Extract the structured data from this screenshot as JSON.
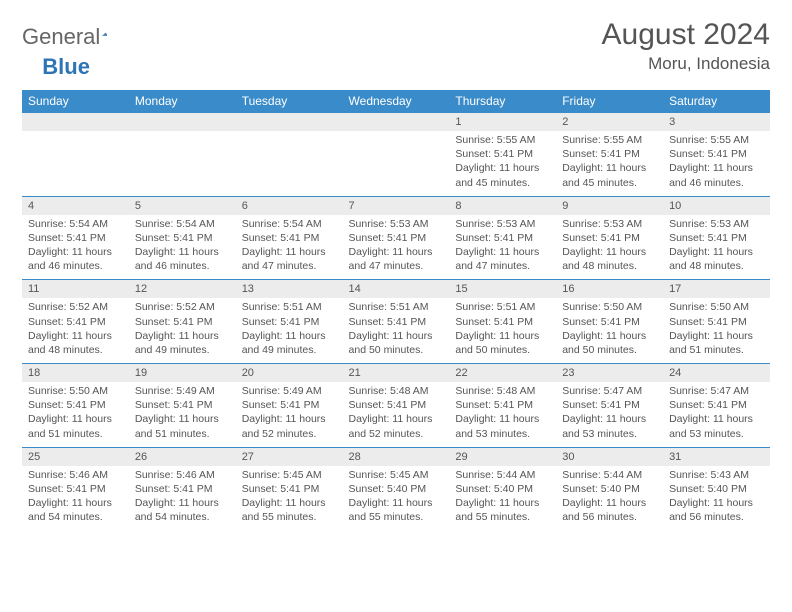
{
  "brand": {
    "part1": "General",
    "part2": "Blue"
  },
  "title": "August 2024",
  "location": "Moru, Indonesia",
  "colors": {
    "header_bg": "#3a8bc9",
    "header_text": "#ffffff",
    "daynum_bg": "#ececec",
    "rule": "#3a8bc9",
    "body_text": "#555555",
    "brand_gray": "#666666",
    "brand_blue": "#2e75b6"
  },
  "weekdays": [
    "Sunday",
    "Monday",
    "Tuesday",
    "Wednesday",
    "Thursday",
    "Friday",
    "Saturday"
  ],
  "weeks": [
    {
      "nums": [
        "",
        "",
        "",
        "",
        "1",
        "2",
        "3"
      ],
      "sun": [
        "",
        "",
        "",
        "",
        "Sunrise: 5:55 AM",
        "Sunrise: 5:55 AM",
        "Sunrise: 5:55 AM"
      ],
      "set": [
        "",
        "",
        "",
        "",
        "Sunset: 5:41 PM",
        "Sunset: 5:41 PM",
        "Sunset: 5:41 PM"
      ],
      "day1": [
        "",
        "",
        "",
        "",
        "Daylight: 11 hours",
        "Daylight: 11 hours",
        "Daylight: 11 hours"
      ],
      "day2": [
        "",
        "",
        "",
        "",
        "and 45 minutes.",
        "and 45 minutes.",
        "and 46 minutes."
      ]
    },
    {
      "nums": [
        "4",
        "5",
        "6",
        "7",
        "8",
        "9",
        "10"
      ],
      "sun": [
        "Sunrise: 5:54 AM",
        "Sunrise: 5:54 AM",
        "Sunrise: 5:54 AM",
        "Sunrise: 5:53 AM",
        "Sunrise: 5:53 AM",
        "Sunrise: 5:53 AM",
        "Sunrise: 5:53 AM"
      ],
      "set": [
        "Sunset: 5:41 PM",
        "Sunset: 5:41 PM",
        "Sunset: 5:41 PM",
        "Sunset: 5:41 PM",
        "Sunset: 5:41 PM",
        "Sunset: 5:41 PM",
        "Sunset: 5:41 PM"
      ],
      "day1": [
        "Daylight: 11 hours",
        "Daylight: 11 hours",
        "Daylight: 11 hours",
        "Daylight: 11 hours",
        "Daylight: 11 hours",
        "Daylight: 11 hours",
        "Daylight: 11 hours"
      ],
      "day2": [
        "and 46 minutes.",
        "and 46 minutes.",
        "and 47 minutes.",
        "and 47 minutes.",
        "and 47 minutes.",
        "and 48 minutes.",
        "and 48 minutes."
      ]
    },
    {
      "nums": [
        "11",
        "12",
        "13",
        "14",
        "15",
        "16",
        "17"
      ],
      "sun": [
        "Sunrise: 5:52 AM",
        "Sunrise: 5:52 AM",
        "Sunrise: 5:51 AM",
        "Sunrise: 5:51 AM",
        "Sunrise: 5:51 AM",
        "Sunrise: 5:50 AM",
        "Sunrise: 5:50 AM"
      ],
      "set": [
        "Sunset: 5:41 PM",
        "Sunset: 5:41 PM",
        "Sunset: 5:41 PM",
        "Sunset: 5:41 PM",
        "Sunset: 5:41 PM",
        "Sunset: 5:41 PM",
        "Sunset: 5:41 PM"
      ],
      "day1": [
        "Daylight: 11 hours",
        "Daylight: 11 hours",
        "Daylight: 11 hours",
        "Daylight: 11 hours",
        "Daylight: 11 hours",
        "Daylight: 11 hours",
        "Daylight: 11 hours"
      ],
      "day2": [
        "and 48 minutes.",
        "and 49 minutes.",
        "and 49 minutes.",
        "and 50 minutes.",
        "and 50 minutes.",
        "and 50 minutes.",
        "and 51 minutes."
      ]
    },
    {
      "nums": [
        "18",
        "19",
        "20",
        "21",
        "22",
        "23",
        "24"
      ],
      "sun": [
        "Sunrise: 5:50 AM",
        "Sunrise: 5:49 AM",
        "Sunrise: 5:49 AM",
        "Sunrise: 5:48 AM",
        "Sunrise: 5:48 AM",
        "Sunrise: 5:47 AM",
        "Sunrise: 5:47 AM"
      ],
      "set": [
        "Sunset: 5:41 PM",
        "Sunset: 5:41 PM",
        "Sunset: 5:41 PM",
        "Sunset: 5:41 PM",
        "Sunset: 5:41 PM",
        "Sunset: 5:41 PM",
        "Sunset: 5:41 PM"
      ],
      "day1": [
        "Daylight: 11 hours",
        "Daylight: 11 hours",
        "Daylight: 11 hours",
        "Daylight: 11 hours",
        "Daylight: 11 hours",
        "Daylight: 11 hours",
        "Daylight: 11 hours"
      ],
      "day2": [
        "and 51 minutes.",
        "and 51 minutes.",
        "and 52 minutes.",
        "and 52 minutes.",
        "and 53 minutes.",
        "and 53 minutes.",
        "and 53 minutes."
      ]
    },
    {
      "nums": [
        "25",
        "26",
        "27",
        "28",
        "29",
        "30",
        "31"
      ],
      "sun": [
        "Sunrise: 5:46 AM",
        "Sunrise: 5:46 AM",
        "Sunrise: 5:45 AM",
        "Sunrise: 5:45 AM",
        "Sunrise: 5:44 AM",
        "Sunrise: 5:44 AM",
        "Sunrise: 5:43 AM"
      ],
      "set": [
        "Sunset: 5:41 PM",
        "Sunset: 5:41 PM",
        "Sunset: 5:41 PM",
        "Sunset: 5:40 PM",
        "Sunset: 5:40 PM",
        "Sunset: 5:40 PM",
        "Sunset: 5:40 PM"
      ],
      "day1": [
        "Daylight: 11 hours",
        "Daylight: 11 hours",
        "Daylight: 11 hours",
        "Daylight: 11 hours",
        "Daylight: 11 hours",
        "Daylight: 11 hours",
        "Daylight: 11 hours"
      ],
      "day2": [
        "and 54 minutes.",
        "and 54 minutes.",
        "and 55 minutes.",
        "and 55 minutes.",
        "and 55 minutes.",
        "and 56 minutes.",
        "and 56 minutes."
      ]
    }
  ]
}
